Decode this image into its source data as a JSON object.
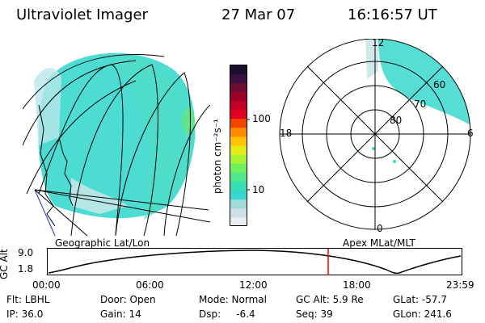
{
  "header": {
    "instrument": "Ultraviolet Imager",
    "date": "27 Mar 07",
    "time": "16:16:57 UT"
  },
  "colorbar": {
    "unit_label": "photon cm⁻²s⁻¹",
    "ticks": [
      "100",
      "10"
    ],
    "colors": [
      "#e9eef1",
      "#cfe0e6",
      "#9ddcd8",
      "#37d7cf",
      "#36e0b6",
      "#4fe78b",
      "#6ef061",
      "#a9f530",
      "#e7ec17",
      "#ffc407",
      "#ff8a00",
      "#f44500",
      "#e1001e",
      "#c40027",
      "#9b0027",
      "#6a0c32",
      "#3a1240",
      "#1b0f2e"
    ]
  },
  "left_panel": {
    "caption": "Geographic Lat/Lon",
    "accent": "#3ad8cd"
  },
  "right_panel": {
    "caption": "Apex MLat/MLT",
    "mlt_labels": {
      "top": "12",
      "bottom": "0",
      "left": "18",
      "right": "6"
    },
    "mlat_labels": [
      "60",
      "70",
      "80"
    ]
  },
  "altitude_plot": {
    "ylabel": "GC Alt",
    "yticks": [
      "9.0",
      "1.8"
    ],
    "xticks": [
      "00:00",
      "06:00",
      "12:00",
      "18:00",
      "23:59"
    ],
    "marker_color": "#ff0000",
    "current_time": "16:16:57"
  },
  "footer": [
    [
      "Flt: LBHL",
      "Door: Open",
      "Mode: Normal",
      "GC Alt: 5.9 Re",
      "GLat: -57.7"
    ],
    [
      "IP: 36.0",
      "Gain: 14",
      "Dsp:     -6.4",
      "Seq: 39",
      "GLon: 241.6"
    ]
  ]
}
